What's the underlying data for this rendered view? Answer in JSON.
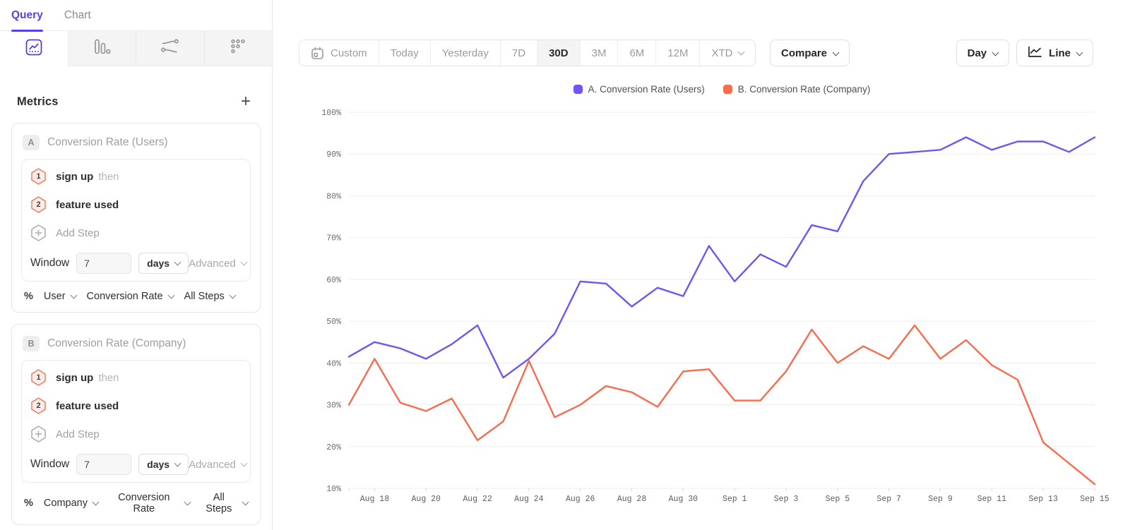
{
  "colors": {
    "accent_purple": "#5b3df0",
    "series_a": "#7254f2",
    "series_b": "#fa6a4c",
    "gridline": "#ededed",
    "step_badge_border": "#ef7e62",
    "step_badge_fill": "#fdece7"
  },
  "sidebar": {
    "tabs": [
      {
        "label": "Query",
        "active": true
      },
      {
        "label": "Chart",
        "active": false
      }
    ],
    "view_tabs": [
      {
        "icon": "insights-line-chart-icon",
        "active": true
      },
      {
        "icon": "bar-chart-icon",
        "active": false
      },
      {
        "icon": "flows-icon",
        "active": false
      },
      {
        "icon": "funnel-dots-icon",
        "active": false
      }
    ],
    "metrics_header": {
      "title": "Metrics",
      "add_label": "+"
    },
    "metric_cards": [
      {
        "badge": "A",
        "title": "Conversion Rate (Users)",
        "steps": [
          {
            "num": "1",
            "event": "sign up",
            "suffix": "then"
          },
          {
            "num": "2",
            "event": "feature used",
            "suffix": ""
          }
        ],
        "add_step_label": "Add Step",
        "window": {
          "label": "Window",
          "value": "7",
          "unit": "days",
          "advanced_label": "Advanced"
        },
        "measure": {
          "prefix": "%",
          "entity": "User",
          "metric": "Conversion Rate",
          "steps_scope": "All Steps"
        }
      },
      {
        "badge": "B",
        "title": "Conversion Rate (Company)",
        "steps": [
          {
            "num": "1",
            "event": "sign up",
            "suffix": "then"
          },
          {
            "num": "2",
            "event": "feature used",
            "suffix": ""
          }
        ],
        "add_step_label": "Add Step",
        "window": {
          "label": "Window",
          "value": "7",
          "unit": "days",
          "advanced_label": "Advanced"
        },
        "measure": {
          "prefix": "%",
          "entity": "Company",
          "metric": "Conversion Rate",
          "steps_scope": "All Steps"
        }
      }
    ]
  },
  "toolbar": {
    "date_ranges": [
      {
        "label": "Custom",
        "icon": "calendar-icon",
        "active": false,
        "chevron": false
      },
      {
        "label": "Today",
        "active": false,
        "chevron": false
      },
      {
        "label": "Yesterday",
        "active": false,
        "chevron": false
      },
      {
        "label": "7D",
        "active": false,
        "chevron": false
      },
      {
        "label": "30D",
        "active": true,
        "chevron": false
      },
      {
        "label": "3M",
        "active": false,
        "chevron": false
      },
      {
        "label": "6M",
        "active": false,
        "chevron": false
      },
      {
        "label": "12M",
        "active": false,
        "chevron": false
      },
      {
        "label": "XTD",
        "active": false,
        "chevron": true
      }
    ],
    "compare_label": "Compare",
    "granularity_label": "Day",
    "chart_type": {
      "label": "Line",
      "icon": "line-chart-icon"
    }
  },
  "legend": [
    {
      "label": "A. Conversion Rate (Users)",
      "color": "#7254f2"
    },
    {
      "label": "B. Conversion Rate (Company)",
      "color": "#fa6a4c"
    }
  ],
  "chart_data": {
    "type": "line",
    "title": "",
    "xlabel": "",
    "ylabel": "",
    "ylim": [
      10,
      100
    ],
    "ytick_step": 10,
    "grid": true,
    "legend_position": "top-center",
    "y_tick_labels": [
      "100%",
      "90%",
      "80%",
      "70%",
      "60%",
      "50%",
      "40%",
      "30%",
      "20%",
      "10%"
    ],
    "x": [
      "Aug 17",
      "Aug 18",
      "Aug 19",
      "Aug 20",
      "Aug 21",
      "Aug 22",
      "Aug 23",
      "Aug 24",
      "Aug 25",
      "Aug 26",
      "Aug 27",
      "Aug 28",
      "Aug 29",
      "Aug 30",
      "Aug 31",
      "Sep 1",
      "Sep 2",
      "Sep 3",
      "Sep 4",
      "Sep 5",
      "Sep 6",
      "Sep 7",
      "Sep 8",
      "Sep 9",
      "Sep 10",
      "Sep 11",
      "Sep 12",
      "Sep 13",
      "Sep 14",
      "Sep 15"
    ],
    "x_tick_labels": [
      "Aug 18",
      "Aug 20",
      "Aug 22",
      "Aug 24",
      "Aug 26",
      "Aug 28",
      "Aug 30",
      "Sep 1",
      "Sep 3",
      "Sep 5",
      "Sep 7",
      "Sep 9",
      "Sep 11",
      "Sep 13",
      "Sep 15"
    ],
    "series": [
      {
        "name": "A. Conversion Rate (Users)",
        "color": "#7254f2",
        "values": [
          41.5,
          45,
          43.5,
          41,
          44.5,
          49,
          36.5,
          41,
          47,
          59.5,
          59,
          53.5,
          58,
          56,
          68,
          59.5,
          66,
          63,
          73,
          71.5,
          83.5,
          90,
          90.5,
          91,
          94,
          91,
          93,
          93,
          90.5,
          94
        ]
      },
      {
        "name": "B. Conversion Rate (Company)",
        "color": "#fa6a4c",
        "values": [
          30,
          41,
          30.5,
          28.5,
          31.5,
          21.5,
          26,
          40.5,
          27,
          30,
          34.5,
          33,
          29.5,
          38,
          38.5,
          31,
          31,
          38,
          48,
          40,
          44,
          41,
          49,
          41,
          45.5,
          39.5,
          36,
          21,
          16,
          11
        ]
      }
    ]
  }
}
